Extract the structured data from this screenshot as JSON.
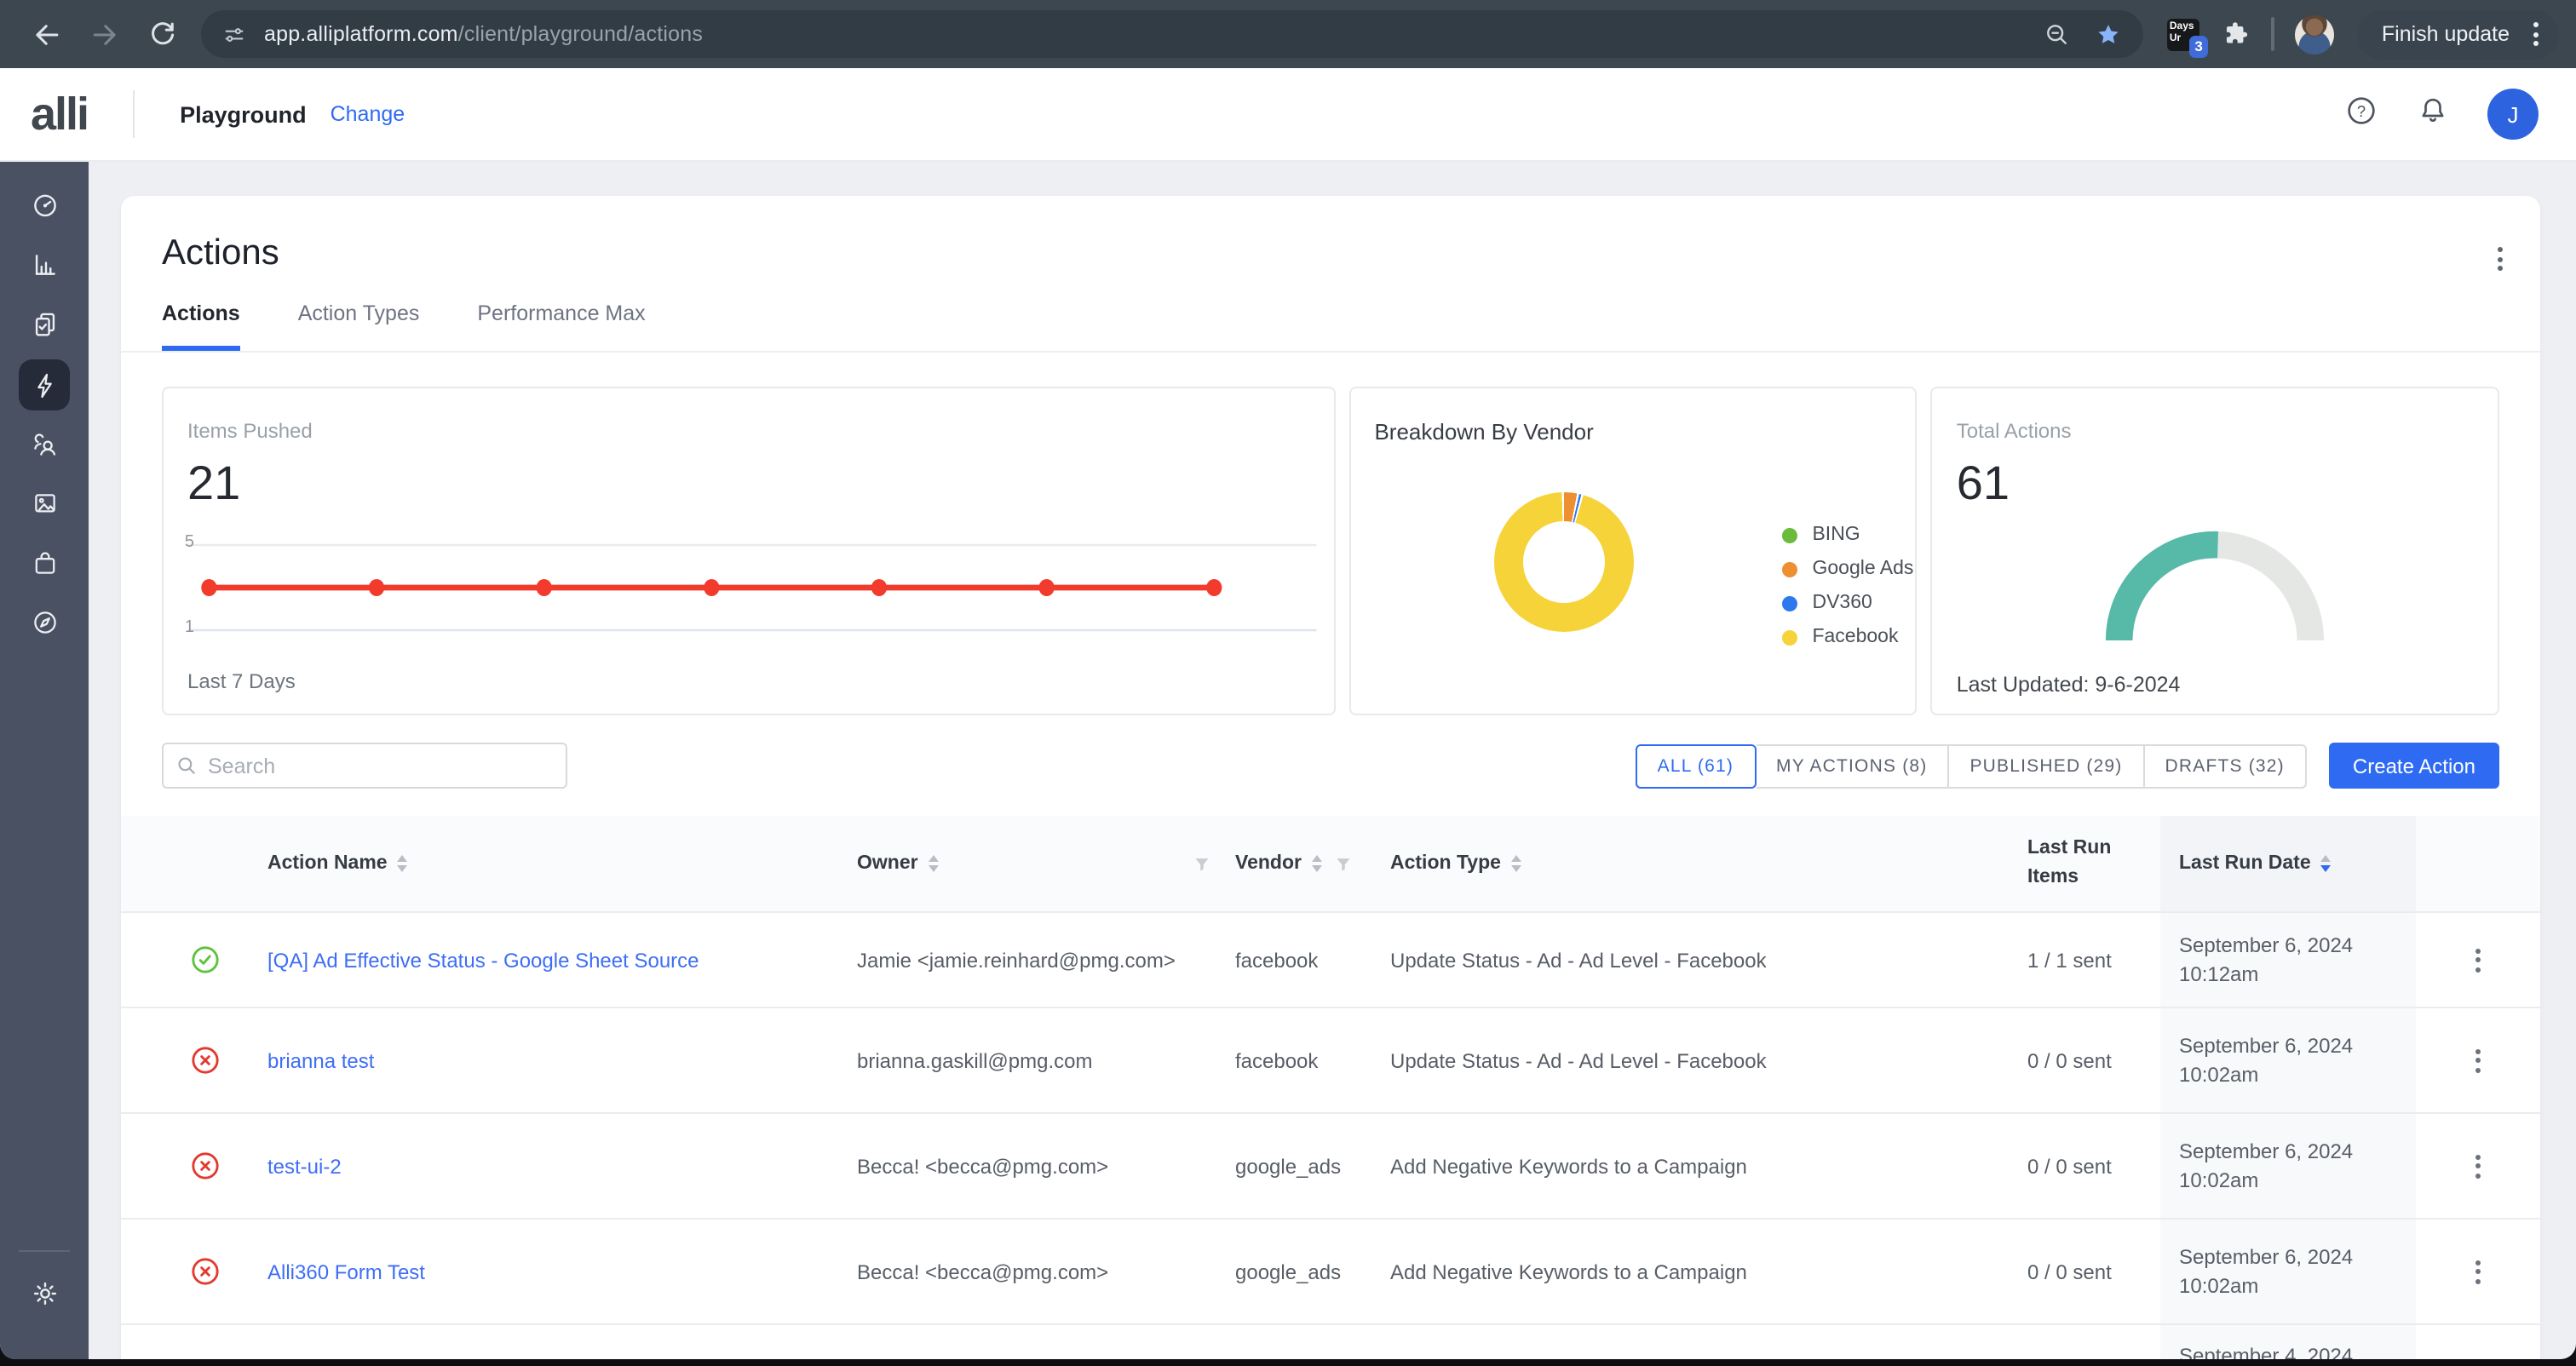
{
  "browser": {
    "url_host": "app.alliplatform.com",
    "url_path": "/client/playground/actions",
    "update_button_label": "Finish update",
    "extension_text_line1": "Days",
    "extension_text_line2": "Ur",
    "extension_badge": "3"
  },
  "header": {
    "logo_text": "alli",
    "workspace_name": "Playground",
    "change_link_label": "Change",
    "avatar_initial": "J"
  },
  "page": {
    "title": "Actions",
    "tabs": [
      {
        "label": "Actions"
      },
      {
        "label": "Action Types"
      },
      {
        "label": "Performance Max"
      }
    ]
  },
  "stats": {
    "items_pushed": {
      "label": "Items Pushed",
      "value": "21",
      "caption": "Last 7 Days"
    },
    "vendor_breakdown": {
      "title": "Breakdown By Vendor",
      "legend": [
        {
          "label": "BING",
          "color": "#6abb3d"
        },
        {
          "label": "Google Ads",
          "color": "#ee8f31"
        },
        {
          "label": "DV360",
          "color": "#2e78ee"
        },
        {
          "label": "Facebook",
          "color": "#f6d338"
        }
      ]
    },
    "total_actions": {
      "label": "Total Actions",
      "value": "61",
      "updated_label": "Last Updated: 9-6-2024"
    }
  },
  "chart_data": [
    {
      "type": "line",
      "title": "Items Pushed",
      "x": [
        1,
        2,
        3,
        4,
        5,
        6,
        7
      ],
      "series": [
        {
          "name": "Items Pushed",
          "values": [
            3,
            3,
            3,
            3,
            3,
            3,
            3
          ]
        }
      ],
      "ylim": [
        1,
        5
      ],
      "yticks": [
        5,
        1
      ],
      "xlabel": "Last 7 Days",
      "line_color": "#f23a2d",
      "grid": true
    },
    {
      "type": "pie",
      "donut": true,
      "title": "Breakdown By Vendor",
      "categories": [
        "BING",
        "Google Ads",
        "DV360",
        "Facebook"
      ],
      "values": [
        0,
        3.5,
        1,
        95.5
      ],
      "colors": [
        "#6abb3d",
        "#ee8f31",
        "#2e78ee",
        "#f6d338"
      ],
      "legend_position": "right"
    },
    {
      "type": "pie",
      "style": "half-donut-gauge",
      "title": "Total Actions",
      "value": 61,
      "fraction_filled": 0.51,
      "colors": [
        "#57b9a8",
        "#e4e7e4"
      ],
      "footer": "Last Updated: 9-6-2024"
    }
  ],
  "toolbar": {
    "search_placeholder": "Search",
    "filters": [
      {
        "label": "ALL (61)"
      },
      {
        "label": "MY ACTIONS (8)"
      },
      {
        "label": "PUBLISHED (29)"
      },
      {
        "label": "DRAFTS (32)"
      }
    ],
    "create_button_label": "Create Action"
  },
  "table": {
    "columns": {
      "action_name": "Action Name",
      "owner": "Owner",
      "vendor": "Vendor",
      "action_type": "Action Type",
      "last_run_items": "Last Run Items",
      "last_run_date": "Last Run Date"
    },
    "rows": [
      {
        "status": "success",
        "name": "[QA] Ad Effective Status - Google Sheet Source",
        "owner": "Jamie <jamie.reinhard@pmg.com>",
        "vendor": "facebook",
        "action_type": "Update Status - Ad - Ad Level - Facebook",
        "items": "1 / 1 sent",
        "date": "September 6, 2024",
        "time": "10:12am"
      },
      {
        "status": "error",
        "name": "brianna test",
        "owner": "brianna.gaskill@pmg.com",
        "vendor": "facebook",
        "action_type": "Update Status - Ad - Ad Level - Facebook",
        "items": "0 / 0 sent",
        "date": "September 6, 2024",
        "time": "10:02am"
      },
      {
        "status": "error",
        "name": "test-ui-2",
        "owner": "Becca! <becca@pmg.com>",
        "vendor": "google_ads",
        "action_type": "Add Negative Keywords to a Campaign",
        "items": "0 / 0 sent",
        "date": "September 6, 2024",
        "time": "10:02am"
      },
      {
        "status": "error",
        "name": "Alli360 Form Test",
        "owner": "Becca! <becca@pmg.com>",
        "vendor": "google_ads",
        "action_type": "Add Negative Keywords to a Campaign",
        "items": "0 / 0 sent",
        "date": "September 6, 2024",
        "time": "10:02am"
      },
      {
        "status": "",
        "name": "",
        "owner": "",
        "vendor": "",
        "action_type": "",
        "items": "",
        "date": "September 4, 2024",
        "time": ""
      }
    ]
  }
}
